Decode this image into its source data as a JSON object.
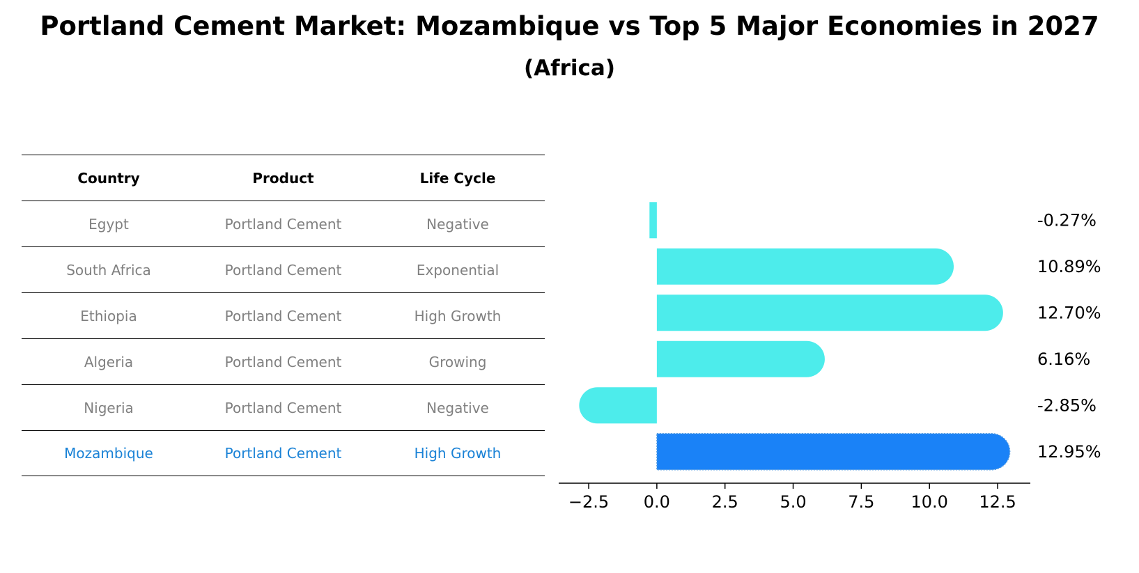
{
  "title": "Portland Cement Market: Mozambique vs Top 5 Major Economies in 2027",
  "subtitle": "(Africa)",
  "table": {
    "headers": [
      "Country",
      "Product",
      "Life Cycle"
    ],
    "rows": [
      [
        "Egypt",
        "Portland Cement",
        "Negative"
      ],
      [
        "South Africa",
        "Portland Cement",
        "Exponential"
      ],
      [
        "Ethiopia",
        "Portland Cement",
        "High Growth"
      ],
      [
        "Algeria",
        "Portland Cement",
        "Growing"
      ],
      [
        "Nigeria",
        "Portland Cement",
        "Negative"
      ],
      [
        "Mozambique",
        "Portland Cement",
        "High Growth"
      ]
    ]
  },
  "chart_data": {
    "type": "bar",
    "orientation": "horizontal",
    "categories": [
      "Egypt",
      "South Africa",
      "Ethiopia",
      "Algeria",
      "Nigeria",
      "Mozambique"
    ],
    "values": [
      -0.27,
      10.89,
      12.7,
      6.16,
      -2.85,
      12.95
    ],
    "value_labels": [
      "-0.27%",
      "10.89%",
      "12.70%",
      "6.16%",
      "-2.85%",
      "12.95%"
    ],
    "highlight": "Mozambique",
    "colors": {
      "default": "#4deceb",
      "highlight": "#1a82f7"
    },
    "xlim": [
      -3.6,
      13.7
    ],
    "xticks": [
      -2.5,
      0.0,
      2.5,
      5.0,
      7.5,
      10.0,
      12.5
    ],
    "xtick_labels": [
      "−2.5",
      "0.0",
      "2.5",
      "5.0",
      "7.5",
      "10.0",
      "12.5"
    ]
  }
}
